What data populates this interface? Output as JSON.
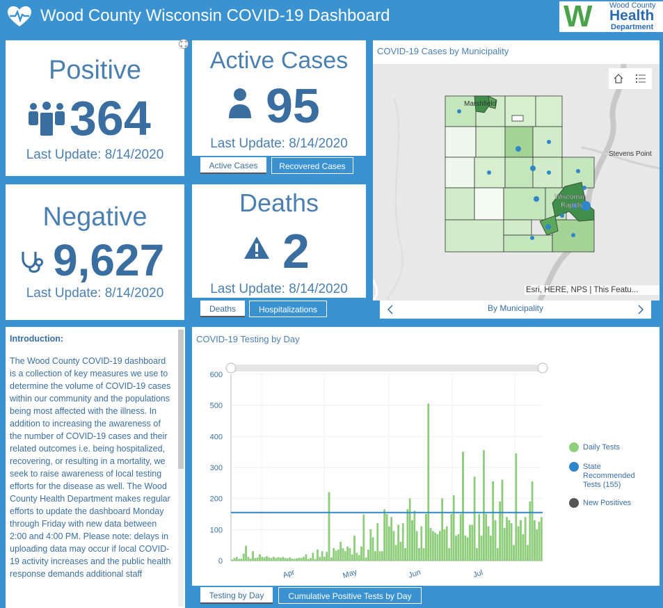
{
  "header": {
    "title": "Wood County Wisconsin COVID-19 Dashboard",
    "logo_line1": "Wood County",
    "logo_line2": "Health",
    "logo_line3": "Department"
  },
  "kpis": {
    "positive": {
      "label": "Positive",
      "value": "364",
      "updated": "Last Update: 8/14/2020"
    },
    "active": {
      "label": "Active Cases",
      "value": "95",
      "updated": "Last Update: 8/14/2020"
    },
    "negative": {
      "label": "Negative",
      "value": "9,627",
      "updated": "Last Update: 8/14/2020"
    },
    "deaths": {
      "label": "Deaths",
      "value": "2",
      "updated": "Last Update: 8/14/2020"
    }
  },
  "tabs": {
    "active_group": [
      "Active Cases",
      "Recovered Cases"
    ],
    "deaths_group": [
      "Deaths",
      "Hospitalizations"
    ],
    "chart_group": [
      "Testing by Day",
      "Cumulative Positive Tests by Day"
    ]
  },
  "map": {
    "title": "COVID-19 Cases by Municipality",
    "labels": {
      "marshfield": "Marshfield",
      "stevens_point": "Stevens Point",
      "wisconsin_rapids_1": "Wisconsin",
      "wisconsin_rapids_2": "Rapids"
    },
    "attribution": "Esri, HERE, NPS | This Featu...",
    "pager_label": "By Municipality",
    "icons": [
      "home-icon",
      "list-icon",
      "chevron-left-icon",
      "chevron-right-icon"
    ]
  },
  "intro": {
    "heading": "Introduction:",
    "body": "The Wood County COVID-19 dashboard is a collection of key measures we use to determine the volume of COVID-19 cases within our community and the populations being most affected with the illness. In addition to increasing the awareness of the number of COVID-19 cases and their related outcomes i.e. being hospitalized, recovering, or resulting in a mortality, we seek to raise awareness of local testing efforts for the disease as well. The Wood County Health Department makes regular efforts to update the dashboard Monday through Friday with new data between 2:00 and 4:00 PM. Please note: delays in uploading data may occur if local COVID-19 activity increases and the public health response demands additional staff"
  },
  "colors": {
    "brand": "#3a93d0",
    "text": "#3a6ea0",
    "daily": "#8ed07a",
    "state": "#2f86c9",
    "positive": "#555555"
  },
  "chart_data": {
    "type": "bar",
    "title": "COVID-19 Testing by Day",
    "ylim": [
      0,
      600
    ],
    "yticks": [
      0,
      100,
      200,
      300,
      400,
      500,
      600
    ],
    "xticks": [
      "Apr",
      "May",
      "Jun",
      "Jul"
    ],
    "reference_line": 155,
    "legend": [
      {
        "name": "Daily Tests",
        "color": "#8ed07a"
      },
      {
        "name": "State Recommended Tests (155)",
        "color": "#2f86c9"
      },
      {
        "name": "New Positives",
        "color": "#555555"
      }
    ],
    "legend_position": "right",
    "daily_tests": [
      3,
      8,
      12,
      5,
      6,
      22,
      48,
      12,
      6,
      30,
      8,
      10,
      20,
      12,
      10,
      14,
      10,
      8,
      12,
      8,
      11,
      9,
      12,
      8,
      7,
      10,
      6,
      5,
      7,
      9,
      8,
      12,
      20,
      5,
      8,
      25,
      5,
      35,
      12,
      30,
      12,
      28,
      220,
      10,
      40,
      32,
      35,
      60,
      40,
      30,
      45,
      40,
      20,
      80,
      25,
      18,
      45,
      148,
      10,
      35,
      100,
      75,
      30,
      120,
      30,
      30,
      165,
      150,
      110,
      140,
      95,
      50,
      115,
      60,
      120,
      40,
      165,
      200,
      130,
      160,
      95,
      40,
      110,
      40,
      150,
      505,
      105,
      95,
      90,
      85,
      95,
      200,
      100,
      110,
      40,
      150,
      210,
      80,
      85,
      150,
      350,
      80,
      75,
      115,
      115,
      270,
      40,
      150,
      80,
      355,
      150,
      110,
      80,
      255,
      130,
      40,
      190,
      260,
      105,
      140,
      130,
      120,
      50,
      345,
      110,
      130,
      85,
      140,
      50,
      190,
      255,
      130,
      100,
      125,
      140
    ]
  }
}
